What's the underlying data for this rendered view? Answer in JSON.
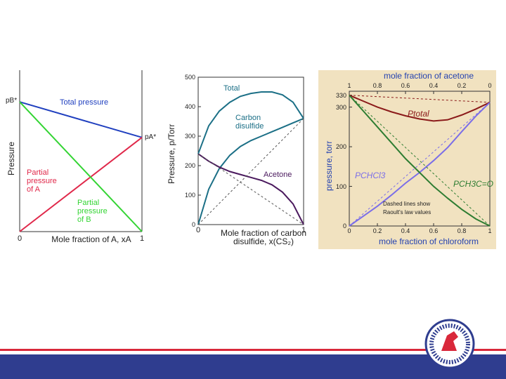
{
  "chart_data": [
    {
      "type": "line",
      "y_label": "Pressure",
      "x_label": "Mole fraction of A, xA",
      "annotations": [
        "pB*",
        "pA*"
      ],
      "x": [
        0,
        1
      ],
      "xlim": [
        0,
        1
      ],
      "xticks": [
        0,
        1
      ],
      "ylim": [
        0,
        1
      ],
      "series": [
        {
          "name": "Total pressure",
          "color": "#1f3fbf",
          "values": [
            0.84,
            0.61
          ]
        },
        {
          "name": "Partial pressure of A",
          "color": "#e0284a",
          "values": [
            0,
            0.61
          ]
        },
        {
          "name": "Partial pressure of B",
          "color": "#33d433",
          "values": [
            0.84,
            0
          ]
        }
      ]
    },
    {
      "type": "line",
      "y_label": "Pressure, p/Torr",
      "x_label": "Mole fraction of carbon disulfide, x(CS₂)",
      "x": [
        0,
        0.1,
        0.2,
        0.3,
        0.4,
        0.5,
        0.6,
        0.7,
        0.8,
        0.9,
        1
      ],
      "xlim": [
        0,
        1
      ],
      "xticks": [
        0,
        1
      ],
      "ylim": [
        0,
        500
      ],
      "yticks": [
        0,
        100,
        200,
        300,
        400,
        500
      ],
      "series": [
        {
          "name": "Total",
          "color": "#1b6f86",
          "values": [
            240,
            335,
            385,
            415,
            435,
            445,
            450,
            450,
            440,
            415,
            360
          ]
        },
        {
          "name": "Carbon disulfide",
          "color": "#1b6f86",
          "values": [
            0,
            120,
            190,
            235,
            265,
            285,
            300,
            315,
            330,
            345,
            360
          ]
        },
        {
          "name": "Acetone",
          "color": "#4b1a5e",
          "values": [
            240,
            215,
            195,
            180,
            170,
            160,
            150,
            135,
            110,
            70,
            0
          ]
        },
        {
          "color": "#555555",
          "dash": true,
          "values": [
            0,
            36,
            72,
            108,
            144,
            180,
            216,
            252,
            288,
            324,
            360
          ]
        },
        {
          "color": "#555555",
          "dash": true,
          "values": [
            240,
            216,
            192,
            168,
            144,
            120,
            96,
            72,
            48,
            24,
            0
          ]
        }
      ]
    },
    {
      "type": "line",
      "y_label": "pressure, torr",
      "x_label": "mole fraction of chloroform",
      "x2_label": "mole fraction of acetone",
      "annotations": [
        "Dashed lines show Raoult's law values"
      ],
      "background": "#f1e2c0",
      "x": [
        0,
        0.1,
        0.2,
        0.3,
        0.4,
        0.5,
        0.6,
        0.7,
        0.8,
        0.9,
        1
      ],
      "xlim": [
        0,
        1
      ],
      "xticks": [
        0,
        0.2,
        0.4,
        0.6,
        0.8,
        1
      ],
      "x2lim": [
        1,
        0
      ],
      "x2ticks": [
        1,
        0.8,
        0.6,
        0.4,
        0.2,
        0
      ],
      "ylim": [
        0,
        340
      ],
      "yticks": [
        0,
        100,
        200,
        300,
        330
      ],
      "series": [
        {
          "name": "Ptotal",
          "color": "#8b1a1a",
          "values": [
            330,
            315,
            300,
            288,
            278,
            270,
            265,
            268,
            280,
            295,
            312
          ]
        },
        {
          "name": "PCHCl3",
          "color": "#7b6ee8",
          "values": [
            0,
            25,
            50,
            78,
            108,
            135,
            165,
            198,
            238,
            277,
            312
          ]
        },
        {
          "name": "PCH3C=O",
          "color": "#2e7d32",
          "values": [
            330,
            290,
            250,
            210,
            170,
            135,
            100,
            70,
            42,
            18,
            0
          ]
        },
        {
          "color": "#8b1a1a",
          "dash": true,
          "values": [
            330,
            328.2,
            326.4,
            324.6,
            322.8,
            321,
            319.2,
            317.4,
            315.6,
            313.8,
            312
          ]
        },
        {
          "color": "#7b6ee8",
          "dash": true,
          "values": [
            0,
            31.2,
            62.4,
            93.6,
            124.8,
            156,
            187.2,
            218.4,
            249.6,
            280.8,
            312
          ]
        },
        {
          "color": "#2e7d32",
          "dash": true,
          "values": [
            330,
            297,
            264,
            231,
            198,
            165,
            132,
            99,
            66,
            33,
            0
          ]
        }
      ]
    }
  ]
}
